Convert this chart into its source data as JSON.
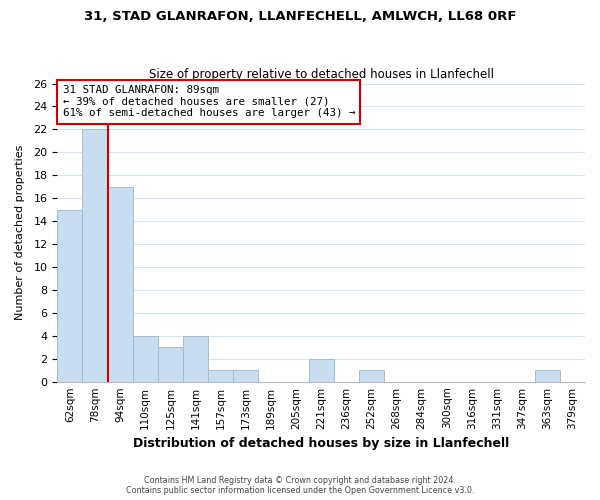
{
  "title1": "31, STAD GLANRAFON, LLANFECHELL, AMLWCH, LL68 0RF",
  "title2": "Size of property relative to detached houses in Llanfechell",
  "xlabel": "Distribution of detached houses by size in Llanfechell",
  "ylabel": "Number of detached properties",
  "bin_labels": [
    "62sqm",
    "78sqm",
    "94sqm",
    "110sqm",
    "125sqm",
    "141sqm",
    "157sqm",
    "173sqm",
    "189sqm",
    "205sqm",
    "221sqm",
    "236sqm",
    "252sqm",
    "268sqm",
    "284sqm",
    "300sqm",
    "316sqm",
    "331sqm",
    "347sqm",
    "363sqm",
    "379sqm"
  ],
  "bar_heights": [
    15,
    22,
    17,
    4,
    3,
    4,
    1,
    1,
    0,
    0,
    2,
    0,
    1,
    0,
    0,
    0,
    0,
    0,
    0,
    1,
    0
  ],
  "bar_color": "#c8ddf0",
  "bar_edge_color": "#9ab8cc",
  "annotation_line1": "31 STAD GLANRAFON: 89sqm",
  "annotation_line2": "← 39% of detached houses are smaller (27)",
  "annotation_line3": "61% of semi-detached houses are larger (43) →",
  "box_edge_color": "#cc0000",
  "red_line_color": "#cc0000",
  "ylim": [
    0,
    26
  ],
  "yticks": [
    0,
    2,
    4,
    6,
    8,
    10,
    12,
    14,
    16,
    18,
    20,
    22,
    24,
    26
  ],
  "grid_color": "#d8e4f0",
  "footer1": "Contains HM Land Registry data © Crown copyright and database right 2024.",
  "footer2": "Contains public sector information licensed under the Open Government Licence v3.0."
}
